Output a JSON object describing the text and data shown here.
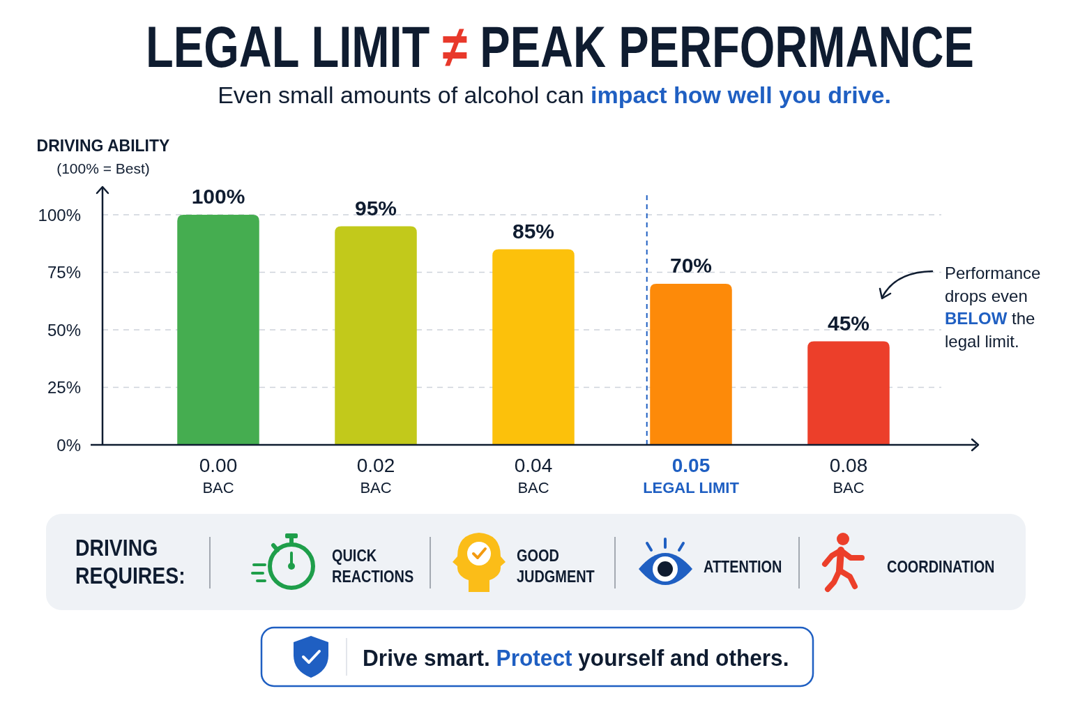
{
  "chart_data": {
    "type": "bar",
    "title": "LEGAL LIMIT ≠ PEAK PERFORMANCE",
    "subtitle": "Even small amounts of alcohol can impact how well you drive.",
    "ylabel": "DRIVING ABILITY\n(100% = Best)",
    "categories": [
      "0.00\nBAC",
      "0.02\nBAC",
      "0.04\nBAC",
      "0.05\nLEGAL LIMIT",
      "0.08\nBAC"
    ],
    "values": [
      100,
      95,
      85,
      70,
      45
    ],
    "colors": [
      "#45ad50",
      "#c2c91b",
      "#fcc10b",
      "#fd8a09",
      "#ec3f2a"
    ],
    "value_labels": [
      "100%",
      "95%",
      "85%",
      "70%",
      "45%"
    ],
    "ylim": [
      0,
      110
    ],
    "yticks": [
      {
        "value": 0,
        "label": "0%"
      },
      {
        "value": 25,
        "label": "25%"
      },
      {
        "value": 50,
        "label": "50%"
      },
      {
        "value": 75,
        "label": "75%"
      },
      {
        "value": 100,
        "label": "100%"
      }
    ],
    "grid": "y",
    "ref_lines": [
      {
        "axis": "x",
        "value": "0.05\nLEGAL LIMIT",
        "color": "#1f5fc2",
        "line_style": "dashed"
      }
    ],
    "annotations": [
      "Performance\ndrops even\nBELOW the\nlegal limit.",
      "DRIVING\nREQUIRES:",
      "QUICK\nREACTIONS",
      "GOOD\nJUDGMENT",
      "ATTENTION",
      "COORDINATION",
      "Drive smart. Protect yourself and others."
    ]
  }
}
